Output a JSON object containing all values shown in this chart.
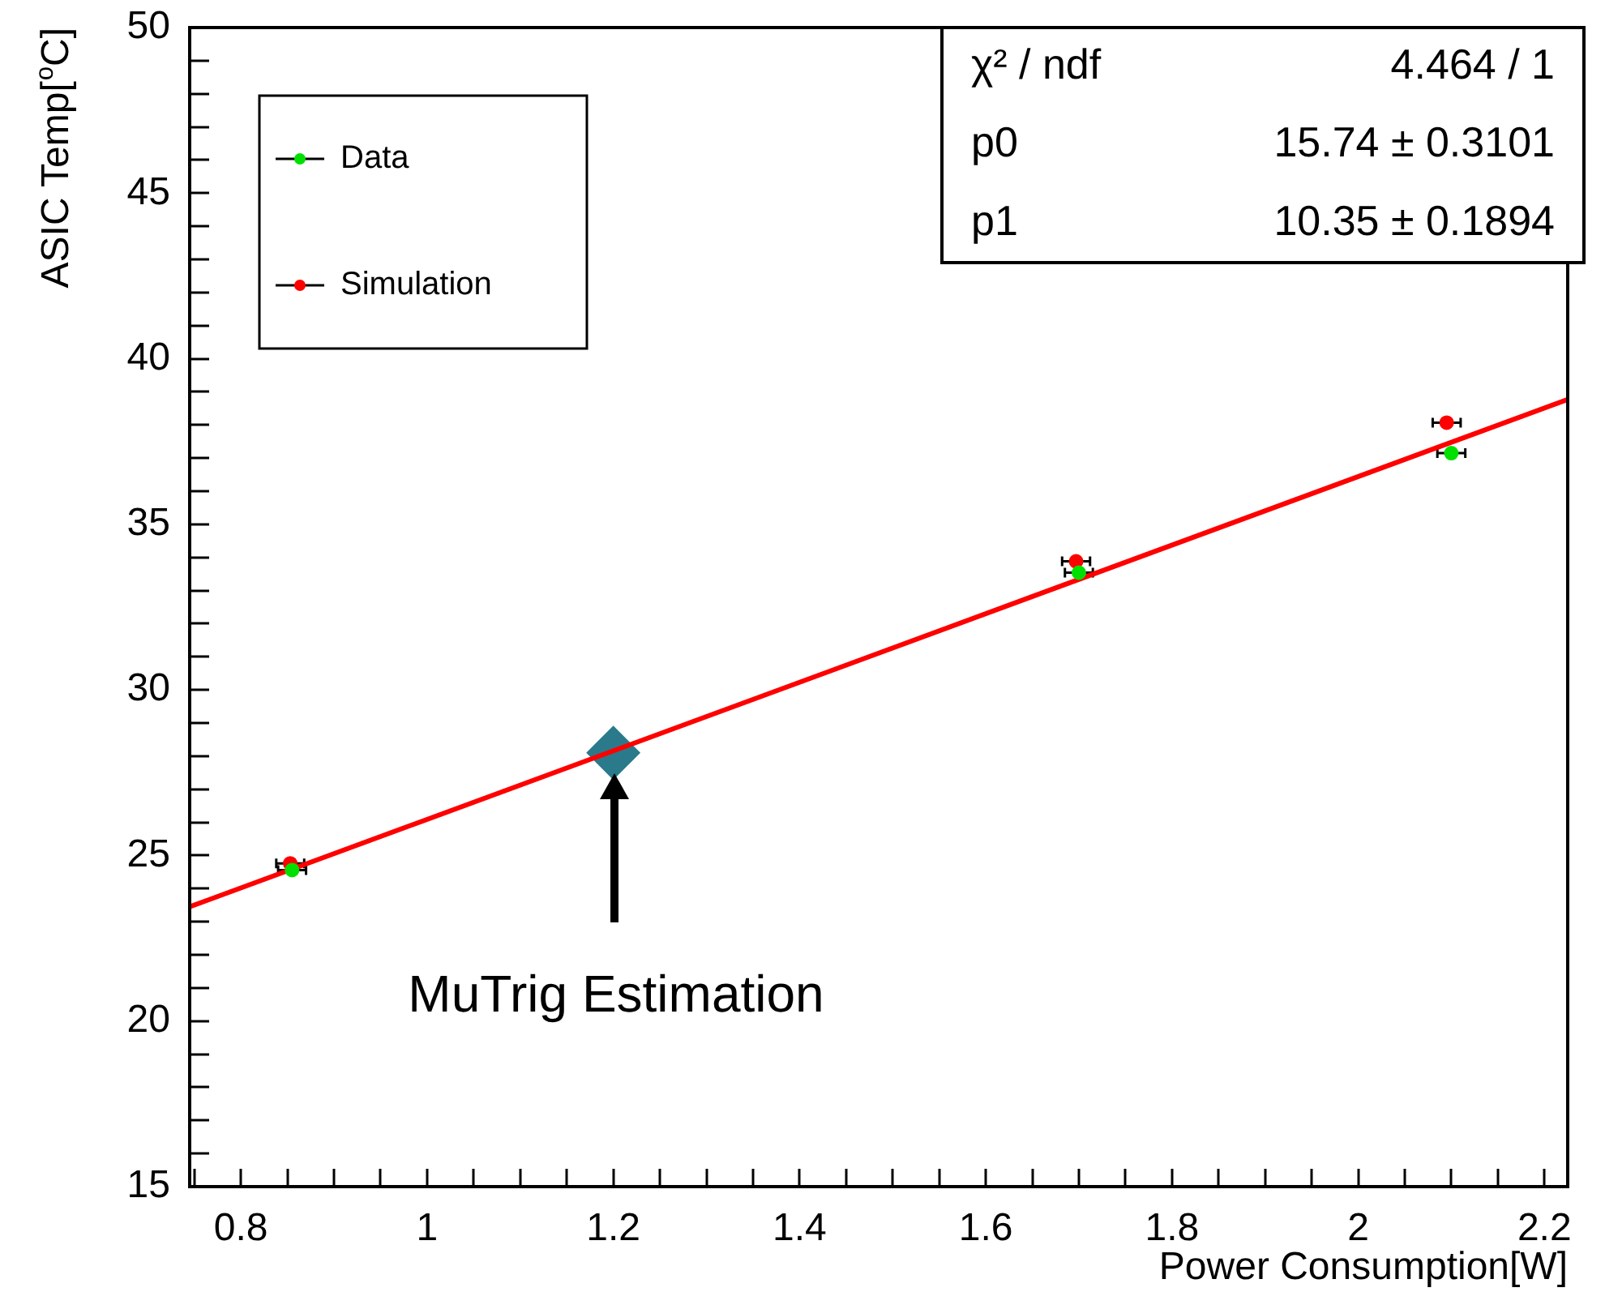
{
  "chart_data": {
    "type": "scatter",
    "xlabel": "Power Consumption[W]",
    "ylabel": "ASIC Temp[$^{o}$C]",
    "xlim": [
      0.745,
      2.225
    ],
    "ylim": [
      15,
      50
    ],
    "xticks": [
      {
        "value": 0.75,
        "label": null
      },
      0.8,
      {
        "value": 0.85,
        "label": null
      },
      {
        "value": 0.9,
        "label": null
      },
      {
        "value": 0.95,
        "label": null
      },
      1,
      {
        "value": 1.05,
        "label": null
      },
      {
        "value": 1.1,
        "label": null
      },
      {
        "value": 1.15,
        "label": null
      },
      1.2,
      {
        "value": 1.25,
        "label": null
      },
      {
        "value": 1.3,
        "label": null
      },
      {
        "value": 1.35,
        "label": null
      },
      1.4,
      {
        "value": 1.45,
        "label": null
      },
      {
        "value": 1.5,
        "label": null
      },
      {
        "value": 1.55,
        "label": null
      },
      1.6,
      {
        "value": 1.65,
        "label": null
      },
      {
        "value": 1.7,
        "label": null
      },
      {
        "value": 1.75,
        "label": null
      },
      1.8,
      {
        "value": 1.85,
        "label": null
      },
      {
        "value": 1.9,
        "label": null
      },
      {
        "value": 1.95,
        "label": null
      },
      2,
      {
        "value": 2.05,
        "label": null
      },
      {
        "value": 2.1,
        "label": null
      },
      {
        "value": 2.15,
        "label": null
      },
      2.2
    ],
    "yticks": [
      15,
      {
        "value": 16,
        "label": null
      },
      {
        "value": 17,
        "label": null
      },
      {
        "value": 18,
        "label": null
      },
      {
        "value": 19,
        "label": null
      },
      20,
      {
        "value": 21,
        "label": null
      },
      {
        "value": 22,
        "label": null
      },
      {
        "value": 23,
        "label": null
      },
      {
        "value": 24,
        "label": null
      },
      25,
      {
        "value": 26,
        "label": null
      },
      {
        "value": 27,
        "label": null
      },
      {
        "value": 28,
        "label": null
      },
      {
        "value": 29,
        "label": null
      },
      30,
      {
        "value": 31,
        "label": null
      },
      {
        "value": 32,
        "label": null
      },
      {
        "value": 33,
        "label": null
      },
      {
        "value": 34,
        "label": null
      },
      35,
      {
        "value": 36,
        "label": null
      },
      {
        "value": 37,
        "label": null
      },
      {
        "value": 38,
        "label": null
      },
      {
        "value": 39,
        "label": null
      },
      40,
      {
        "value": 41,
        "label": null
      },
      {
        "value": 42,
        "label": null
      },
      {
        "value": 43,
        "label": null
      },
      {
        "value": 44,
        "label": null
      },
      45,
      {
        "value": 46,
        "label": null
      },
      {
        "value": 47,
        "label": null
      },
      {
        "value": 48,
        "label": null
      },
      {
        "value": 49,
        "label": null
      },
      50
    ],
    "grid": false,
    "legend": "top left",
    "marker": "circle",
    "series": [
      {
        "name": "Data",
        "color": "#00e000",
        "x": [
          0.855,
          1.7,
          2.1
        ],
        "values": [
          24.56,
          33.54,
          37.15
        ],
        "xerrors": [
          0.015,
          0.015,
          0.015
        ]
      },
      {
        "name": "Simulation",
        "color": "#ff0000",
        "x": [
          0.853,
          1.697,
          2.095
        ],
        "values": [
          24.76,
          33.88,
          38.07
        ],
        "xerrors": [
          0.015,
          0.015,
          0.015
        ]
      },
      {
        "type": "line",
        "color": "#ff0000",
        "marker": "none",
        "x": [
          0.745,
          2.225
        ],
        "values": [
          23.45,
          38.77
        ]
      },
      {
        "type": "scatter",
        "color": "#2a7a8c",
        "marker": "diamond",
        "x": [
          1.2
        ],
        "values": [
          28.1
        ]
      }
    ],
    "annotations": [
      "χ² / ndf",
      "4.464 / 1",
      "p0",
      "15.74 ± 0.3101",
      "p1",
      "10.35 ± 0.1894",
      "MuTrig Estimation"
    ]
  }
}
